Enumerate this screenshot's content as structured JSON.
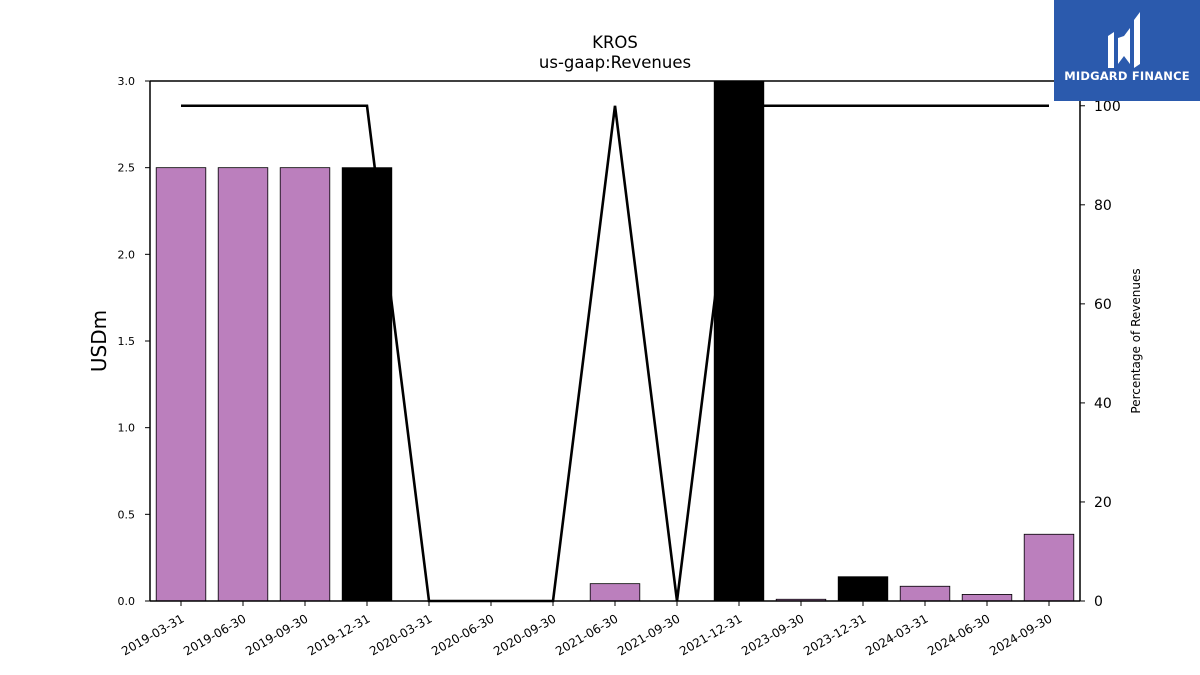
{
  "brand": {
    "name": "MIDGARD FINANCE",
    "color": "#2b5aad",
    "icon": "midgard-logo-icon"
  },
  "chart_data": {
    "type": "bar",
    "title": "KROS",
    "subtitle": "us-gaap:Revenues",
    "ylabel": "USDm",
    "y2label": "Percentage of Revenues",
    "ylim": [
      0,
      3.0
    ],
    "y2lim": [
      0,
      105
    ],
    "yticks": [
      "0.0",
      "0.5",
      "1.0",
      "1.5",
      "2.0",
      "2.5",
      "3.0"
    ],
    "y2ticks": [
      "0",
      "20",
      "40",
      "60",
      "80",
      "100"
    ],
    "categories": [
      "2019-03-31",
      "2019-06-30",
      "2019-09-30",
      "2019-12-31",
      "2020-03-31",
      "2020-06-30",
      "2020-09-30",
      "2021-06-30",
      "2021-09-30",
      "2021-12-31",
      "2023-09-30",
      "2023-12-31",
      "2024-03-31",
      "2024-06-30",
      "2024-09-30"
    ],
    "series": [
      {
        "type": "bar",
        "values": [
          2.5,
          2.5,
          2.5,
          2.5,
          0,
          0,
          0,
          0.1,
          0,
          3.0,
          0.01,
          0.14,
          0.085,
          0.038,
          0.385
        ],
        "colors": [
          "#bb7fbd",
          "#bb7fbd",
          "#bb7fbd",
          "#000000",
          "#bb7fbd",
          "#bb7fbd",
          "#bb7fbd",
          "#bb7fbd",
          "#bb7fbd",
          "#000000",
          "#bb7fbd",
          "#000000",
          "#bb7fbd",
          "#bb7fbd",
          "#bb7fbd"
        ]
      },
      {
        "type": "line",
        "axis": "right",
        "color": "#000000",
        "values": [
          100,
          100,
          100,
          100,
          0,
          0,
          0,
          100,
          0,
          100,
          100,
          100,
          100,
          100,
          100
        ]
      }
    ],
    "grid": false
  }
}
